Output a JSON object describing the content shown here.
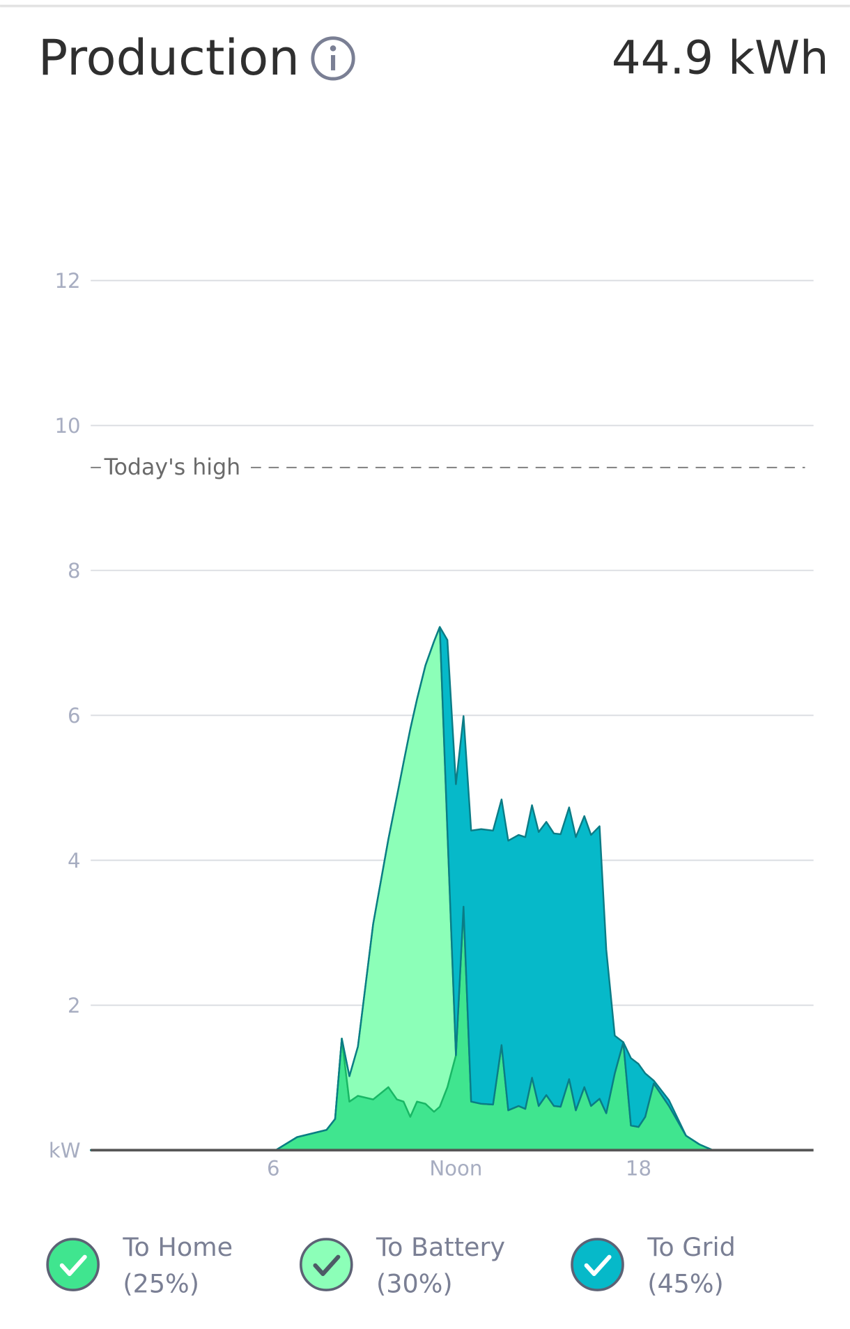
{
  "chart_data": {
    "type": "stacked_area",
    "title": "Production",
    "total": 44.9,
    "total_label": "44.9 kWh",
    "x": [
      0,
      6.08,
      6.78,
      7.75,
      8.03,
      8.25,
      8.5,
      8.78,
      9.28,
      9.78,
      10.06,
      10.28,
      10.5,
      10.72,
      11.0,
      11.28,
      11.47,
      11.72,
      12.0,
      12.25,
      12.5,
      12.83,
      13.22,
      13.5,
      13.72,
      14.06,
      14.28,
      14.5,
      14.72,
      14.97,
      15.22,
      15.44,
      15.72,
      15.94,
      16.22,
      16.44,
      16.72,
      16.94,
      17.22,
      17.5,
      17.75,
      18.0,
      18.22,
      18.5,
      19.0,
      19.56,
      20.0,
      20.44,
      23.72
    ],
    "series": [
      {
        "name": "To Home",
        "share": 25,
        "share_label": "(25%)",
        "color": "#40e58f",
        "line_color": "#19b765",
        "values": [
          0,
          0,
          0.18,
          0.28,
          0.43,
          1.54,
          0.67,
          0.75,
          0.7,
          0.87,
          0.7,
          0.67,
          0.46,
          0.67,
          0.64,
          0.53,
          0.6,
          0.87,
          1.31,
          3.36,
          0.67,
          0.64,
          0.63,
          1.45,
          0.55,
          0.61,
          0.57,
          1.0,
          0.61,
          0.76,
          0.61,
          0.6,
          0.98,
          0.55,
          0.87,
          0.61,
          0.71,
          0.51,
          1.06,
          1.49,
          0.34,
          0.32,
          0.46,
          0.92,
          0.61,
          0.2,
          0.08,
          0,
          0
        ]
      },
      {
        "name": "To Battery",
        "share": 30,
        "share_label": "(30%)",
        "color": "#8cffb8",
        "line_color": "#19b765",
        "values": [
          0,
          0,
          0,
          0,
          0,
          0,
          0.35,
          0.68,
          2.42,
          3.42,
          4.18,
          4.68,
          5.35,
          5.55,
          6.05,
          6.49,
          6.62,
          3.54,
          0,
          0,
          0,
          0,
          0,
          0,
          0,
          0,
          0,
          0,
          0,
          0,
          0,
          0,
          0,
          0,
          0,
          0,
          0,
          0,
          0,
          0,
          0,
          0,
          0,
          0,
          0,
          0,
          0,
          0,
          0
        ]
      },
      {
        "name": "To Grid",
        "share": 45,
        "share_label": "(45%)",
        "color": "#06b9c9",
        "line_color": "#0b7c86",
        "values": [
          0,
          0,
          0,
          0,
          0,
          0,
          0,
          0,
          0,
          0,
          0,
          0,
          0,
          0,
          0,
          0,
          0,
          2.63,
          3.74,
          2.63,
          3.74,
          3.79,
          3.78,
          3.39,
          3.72,
          3.74,
          3.75,
          3.76,
          3.78,
          3.77,
          3.76,
          3.76,
          3.75,
          3.77,
          3.74,
          3.74,
          3.76,
          2.26,
          0.52,
          0,
          0.93,
          0.87,
          0.6,
          0.04,
          0.08,
          0,
          0,
          0,
          0
        ]
      }
    ],
    "xlim": [
      0,
      23.75
    ],
    "xticks": [
      6,
      {
        "value": 12,
        "label": "Noon"
      },
      18
    ],
    "ylim": [
      0,
      12
    ],
    "yticks": [
      {
        "value": 0,
        "label": "kW"
      },
      2,
      4,
      6,
      8,
      10,
      12
    ],
    "grid": true,
    "reference_line": {
      "value": 9.42,
      "label": "Today's high"
    }
  }
}
